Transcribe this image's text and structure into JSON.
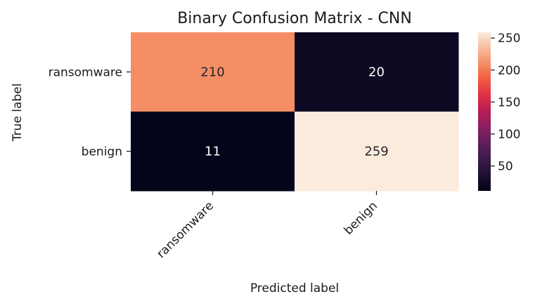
{
  "chart_data": {
    "type": "heatmap",
    "title": "Binary Confusion Matrix - CNN",
    "xlabel": "Predicted label",
    "ylabel": "True label",
    "x_categories": [
      "ransomware",
      "benign"
    ],
    "y_categories": [
      "ransomware",
      "benign"
    ],
    "values": [
      [
        210,
        20
      ],
      [
        11,
        259
      ]
    ],
    "colorbar": {
      "min": 11,
      "max": 259,
      "ticks": [
        50,
        100,
        150,
        200,
        250
      ],
      "colormap": "rocket"
    },
    "grid": false
  }
}
